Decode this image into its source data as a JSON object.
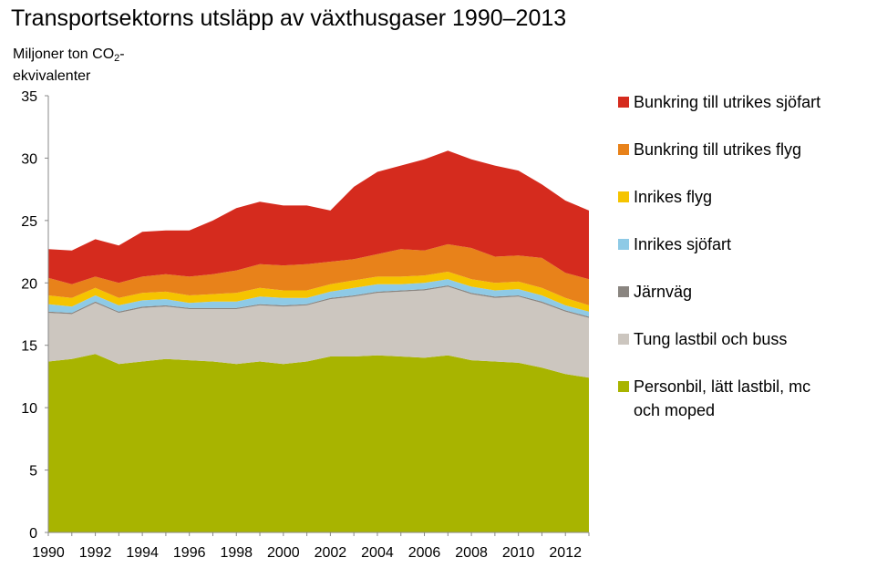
{
  "chart_data": {
    "type": "area",
    "stacked": true,
    "title": "Transportsektorns utsläpp av växthusgaser 1990–2013",
    "ylabel_line1": "Miljoner ton CO",
    "ylabel_sub": "2",
    "ylabel_line1_end": "-",
    "ylabel_line2": "ekvivalenter",
    "ylim": [
      0,
      35
    ],
    "yticks": [
      "0",
      "5",
      "10",
      "15",
      "20",
      "25",
      "30",
      "35"
    ],
    "x": [
      1990,
      1991,
      1992,
      1993,
      1994,
      1995,
      1996,
      1997,
      1998,
      1999,
      2000,
      2001,
      2002,
      2003,
      2004,
      2005,
      2006,
      2007,
      2008,
      2009,
      2010,
      2011,
      2012,
      2013
    ],
    "xticks": [
      "1990",
      "1992",
      "1994",
      "1996",
      "1998",
      "2000",
      "2002",
      "2004",
      "2006",
      "2008",
      "2010",
      "2012"
    ],
    "legend_position": "right",
    "grid": false,
    "series": [
      {
        "name": "Personbil, lätt lastbil, mc och moped",
        "color": "#a8b400",
        "values": [
          13.7,
          13.9,
          14.3,
          13.5,
          13.7,
          13.9,
          13.8,
          13.7,
          13.5,
          13.7,
          13.5,
          13.7,
          14.1,
          14.1,
          14.2,
          14.1,
          14.0,
          14.2,
          13.8,
          13.7,
          13.6,
          13.2,
          12.7,
          12.4
        ]
      },
      {
        "name": "Tung lastbil och buss",
        "color": "#ccc6bf",
        "values": [
          3.9,
          3.6,
          4.1,
          4.1,
          4.3,
          4.2,
          4.1,
          4.2,
          4.4,
          4.5,
          4.6,
          4.5,
          4.6,
          4.8,
          5.0,
          5.2,
          5.4,
          5.5,
          5.3,
          5.1,
          5.3,
          5.2,
          5.0,
          4.8
        ]
      },
      {
        "name": "Järnväg",
        "color": "#8a8580",
        "values": [
          0.1,
          0.1,
          0.1,
          0.1,
          0.1,
          0.1,
          0.1,
          0.1,
          0.1,
          0.1,
          0.1,
          0.1,
          0.1,
          0.1,
          0.1,
          0.1,
          0.1,
          0.1,
          0.1,
          0.1,
          0.1,
          0.1,
          0.1,
          0.1
        ]
      },
      {
        "name": "Inrikes sjöfart",
        "color": "#8ecae6",
        "values": [
          0.6,
          0.5,
          0.5,
          0.5,
          0.5,
          0.5,
          0.4,
          0.5,
          0.5,
          0.6,
          0.6,
          0.5,
          0.5,
          0.6,
          0.6,
          0.5,
          0.5,
          0.5,
          0.5,
          0.5,
          0.5,
          0.5,
          0.4,
          0.4
        ]
      },
      {
        "name": "Inrikes flyg",
        "color": "#f5c400",
        "values": [
          0.7,
          0.7,
          0.6,
          0.6,
          0.6,
          0.6,
          0.6,
          0.6,
          0.7,
          0.7,
          0.6,
          0.6,
          0.6,
          0.6,
          0.6,
          0.6,
          0.6,
          0.6,
          0.6,
          0.6,
          0.6,
          0.6,
          0.6,
          0.5
        ]
      },
      {
        "name": "Bunkring till utrikes flyg",
        "color": "#e8821a",
        "values": [
          1.4,
          1.1,
          0.9,
          1.2,
          1.3,
          1.4,
          1.5,
          1.6,
          1.8,
          1.9,
          2.0,
          2.1,
          1.8,
          1.7,
          1.8,
          2.2,
          2.0,
          2.2,
          2.5,
          2.1,
          2.1,
          2.4,
          2.0,
          2.1
        ]
      },
      {
        "name": "Bunkring till utrikes sjöfart",
        "color": "#d52b1e",
        "values": [
          2.3,
          2.7,
          3.0,
          3.0,
          3.6,
          3.5,
          3.7,
          4.3,
          5.0,
          5.0,
          4.8,
          4.7,
          4.1,
          5.8,
          6.6,
          6.7,
          7.3,
          7.5,
          7.1,
          7.3,
          6.8,
          5.9,
          5.8,
          5.5
        ]
      }
    ]
  }
}
